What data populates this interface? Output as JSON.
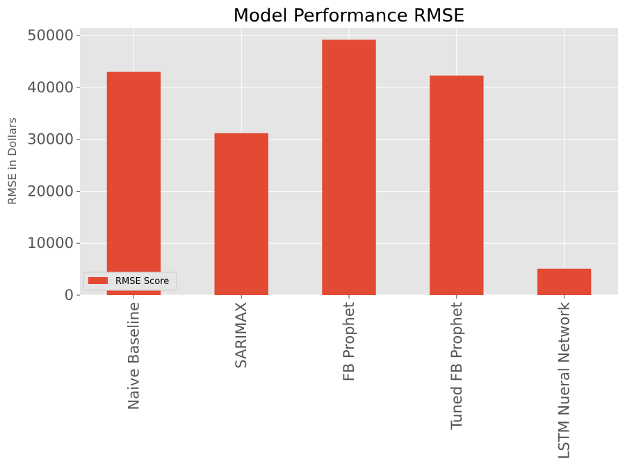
{
  "chart_data": {
    "type": "bar",
    "title": "Model Performance RMSE",
    "xlabel": "",
    "ylabel": "RMSE in Dollars",
    "categories": [
      "Naive Baseline",
      "SARIMAX",
      "FB Prophet",
      "Tuned FB Prophet",
      "LSTM Nueral Network"
    ],
    "series": [
      {
        "name": "RMSE Score",
        "values": [
          43000,
          31200,
          49200,
          42300,
          5100
        ],
        "color": "#e24a33"
      }
    ],
    "ylim": [
      0,
      51500
    ],
    "yticks": [
      0,
      10000,
      20000,
      30000,
      40000,
      50000
    ],
    "grid": true,
    "legend_position": "lower-left",
    "style": {
      "plot_background": "#e5e5e5",
      "grid_color": "#ffffff",
      "tick_color": "#555555"
    }
  }
}
